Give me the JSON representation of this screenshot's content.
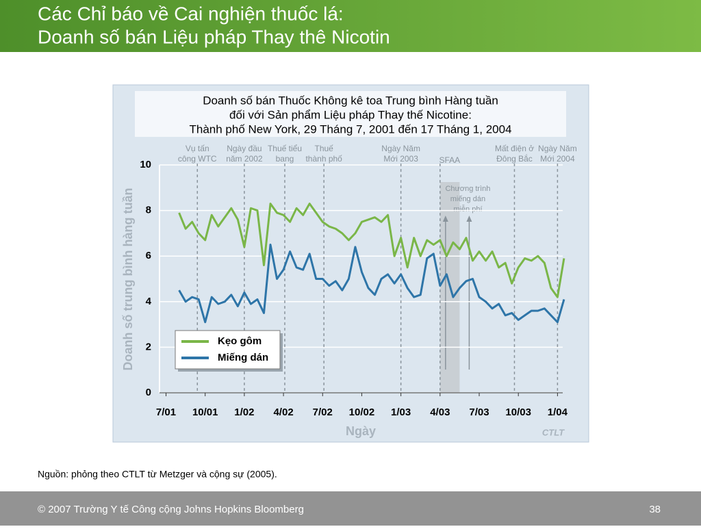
{
  "slide": {
    "title": [
      "Các Chỉ báo về Cai nghiện thuốc lá:",
      "Doanh số bán Liệu pháp Thay thê Nicotin"
    ],
    "source": "Nguồn: phỏng theo CTLT từ Metzger và cộng sự (2005).",
    "footer": "© 2007 Trường Y tế Công cộng Johns Hopkins Bloomberg",
    "page": "38"
  },
  "chart_data": {
    "type": "line",
    "title": [
      "Doanh số bán Thuốc Không kê toa Trung bình Hàng tuần",
      "đối với Sản phẩm Liệu pháp Thay thế Nicotine:",
      "Thành phố New York, 29 Tháng 7, 2001 đến 17 Tháng 1, 2004"
    ],
    "y_label": "Doanh số trung bình hàng tuần",
    "x_label": "Ngày",
    "logo": "CTLT",
    "x": [
      1,
      1.5,
      2,
      2.5,
      3,
      3.5,
      4,
      4.5,
      5,
      5.5,
      6,
      6.5,
      7,
      7.5,
      8,
      8.5,
      9,
      9.5,
      10,
      10.5,
      11,
      11.5,
      12,
      12.5,
      13,
      13.5,
      14,
      14.5,
      15,
      15.5,
      16,
      16.5,
      17,
      17.5,
      18,
      18.5,
      19,
      19.5,
      20,
      20.5,
      21,
      21.5,
      22,
      22.5,
      23,
      23.5,
      24,
      24.5,
      25,
      25.5,
      26,
      26.5,
      27,
      27.5,
      28,
      28.5,
      29,
      29.5,
      30,
      30.5
    ],
    "series": [
      {
        "name": "Kẹo gôm",
        "color": "#7ab648",
        "values": [
          7.9,
          7.2,
          7.5,
          7.0,
          6.7,
          7.8,
          7.3,
          7.7,
          8.1,
          7.6,
          6.4,
          8.1,
          8.0,
          5.6,
          8.3,
          7.9,
          7.8,
          7.5,
          8.1,
          7.8,
          8.3,
          7.9,
          7.5,
          7.3,
          7.2,
          7.0,
          6.7,
          7.0,
          7.5,
          7.6,
          7.7,
          7.5,
          7.8,
          6.0,
          6.8,
          5.5,
          6.8,
          6.0,
          6.7,
          6.5,
          6.7,
          6.0,
          6.6,
          6.3,
          6.8,
          5.8,
          6.2,
          5.8,
          6.2,
          5.5,
          5.7,
          4.8,
          5.5,
          5.9,
          5.8,
          6.0,
          5.7,
          4.6,
          4.2,
          5.9
        ]
      },
      {
        "name": "Miếng dán",
        "color": "#2e75a8",
        "values": [
          4.5,
          4.0,
          4.2,
          4.1,
          3.1,
          4.2,
          3.9,
          4.0,
          4.3,
          3.8,
          4.4,
          3.9,
          4.1,
          3.5,
          6.5,
          5.0,
          5.4,
          6.2,
          5.5,
          5.4,
          6.1,
          5.0,
          5.0,
          4.7,
          4.9,
          4.5,
          5.0,
          6.4,
          5.3,
          4.6,
          4.3,
          5.0,
          5.2,
          4.8,
          5.2,
          4.6,
          4.2,
          4.3,
          5.9,
          6.1,
          4.7,
          5.2,
          4.2,
          4.6,
          4.9,
          5.0,
          4.2,
          4.0,
          3.7,
          3.9,
          3.4,
          3.5,
          3.2,
          3.4,
          3.6,
          3.6,
          3.7,
          3.4,
          3.1,
          4.1
        ]
      }
    ],
    "xlim": [
      -0.5,
      30.4
    ],
    "ylim": [
      0,
      10
    ],
    "xticks": [
      {
        "value": 0,
        "label": "7/01"
      },
      {
        "value": 3,
        "label": "10/01"
      },
      {
        "value": 6,
        "label": "1/02"
      },
      {
        "value": 9,
        "label": "4/02"
      },
      {
        "value": 12,
        "label": "7/02"
      },
      {
        "value": 15,
        "label": "10/02"
      },
      {
        "value": 18,
        "label": "1/03"
      },
      {
        "value": 21,
        "label": "4/03"
      },
      {
        "value": 24,
        "label": "7/03"
      },
      {
        "value": 27,
        "label": "10/03"
      },
      {
        "value": 30,
        "label": "1/04"
      }
    ],
    "yticks": [
      0,
      2,
      4,
      6,
      8,
      10
    ],
    "grid": true,
    "annotations": [
      {
        "label": [
          "Vụ tấn",
          "công WTC"
        ],
        "x": 2.4
      },
      {
        "label": [
          "Ngày đầu",
          "năm 2002"
        ],
        "x": 6
      },
      {
        "label": [
          "Thuế tiểu",
          "bang"
        ],
        "x": 9.1
      },
      {
        "label": [
          "Thuế",
          "thành phố"
        ],
        "x": 12.1
      },
      {
        "label": [
          "Ngày Năm",
          "Mới 2003"
        ],
        "x": 18
      },
      {
        "label": [
          "SFAA"
        ],
        "x": 21
      },
      {
        "label": [
          "Mất điện ở",
          "Đông Bắc"
        ],
        "x": 26.7
      },
      {
        "label": [
          "Ngày Năm",
          "Mới 2004"
        ],
        "x": 30
      }
    ],
    "shaded": {
      "label": [
        "Chương trình",
        "miếng dán",
        "miễn phí"
      ],
      "x": [
        21,
        22.5
      ]
    }
  }
}
